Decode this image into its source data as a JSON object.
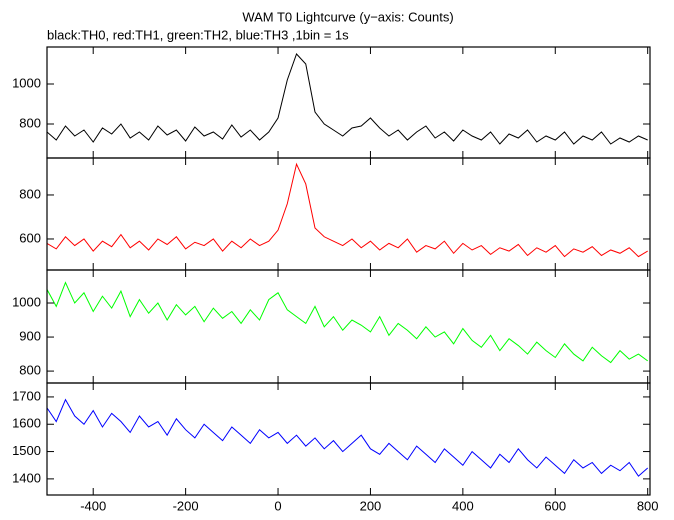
{
  "chart_data": {
    "type": "line",
    "title": "WAM T0 Lightcurve (y−axis: Counts)",
    "subtitle": "black:TH0, red:TH1, green:TH2, blue:TH3 ,1bin = 1s",
    "x": [
      -500,
      -480,
      -460,
      -440,
      -420,
      -400,
      -380,
      -360,
      -340,
      -320,
      -300,
      -280,
      -260,
      -240,
      -220,
      -200,
      -180,
      -160,
      -140,
      -120,
      -100,
      -80,
      -60,
      -40,
      -20,
      0,
      20,
      40,
      60,
      80,
      100,
      120,
      140,
      160,
      180,
      200,
      220,
      240,
      260,
      280,
      300,
      320,
      340,
      360,
      380,
      400,
      420,
      440,
      460,
      480,
      500,
      520,
      540,
      560,
      580,
      600,
      620,
      640,
      660,
      680,
      700,
      720,
      740,
      760,
      780,
      800
    ],
    "xlim": [
      -500,
      805
    ],
    "xticks": [
      -400,
      -200,
      0,
      200,
      400,
      600,
      800
    ],
    "panels": [
      {
        "ylim": [
          630,
          1185
        ],
        "yticks": [
          800,
          1000
        ],
        "color": "#000000",
        "values": [
          760,
          720,
          790,
          740,
          770,
          710,
          780,
          750,
          800,
          730,
          760,
          720,
          790,
          745,
          770,
          715,
          785,
          740,
          760,
          725,
          795,
          735,
          770,
          720,
          760,
          830,
          1020,
          1150,
          1100,
          860,
          800,
          770,
          740,
          780,
          790,
          830,
          780,
          740,
          770,
          720,
          760,
          790,
          730,
          760,
          715,
          770,
          740,
          720,
          760,
          700,
          750,
          730,
          770,
          710,
          740,
          720,
          760,
          700,
          740,
          720,
          760,
          700,
          730,
          710,
          740,
          720
        ]
      },
      {
        "ylim": [
          459,
          968
        ],
        "yticks": [
          600,
          800
        ],
        "color": "#ff0000",
        "values": [
          580,
          555,
          610,
          570,
          600,
          545,
          590,
          565,
          620,
          560,
          590,
          550,
          600,
          575,
          610,
          555,
          585,
          570,
          600,
          545,
          590,
          560,
          600,
          570,
          590,
          640,
          760,
          940,
          850,
          650,
          610,
          590,
          570,
          600,
          560,
          590,
          550,
          580,
          560,
          600,
          540,
          570,
          555,
          590,
          535,
          580,
          550,
          570,
          530,
          560,
          545,
          575,
          525,
          560,
          540,
          570,
          520,
          555,
          540,
          565,
          525,
          550,
          535,
          560,
          520,
          545
        ]
      },
      {
        "ylim": [
          765,
          1097
        ],
        "yticks": [
          800,
          900,
          1000
        ],
        "color": "#00ff00",
        "values": [
          1040,
          990,
          1060,
          1000,
          1030,
          975,
          1020,
          985,
          1035,
          960,
          1010,
          970,
          1000,
          950,
          995,
          965,
          990,
          945,
          985,
          955,
          975,
          940,
          980,
          950,
          1010,
          1030,
          980,
          960,
          940,
          990,
          930,
          960,
          920,
          950,
          935,
          915,
          960,
          905,
          940,
          920,
          895,
          930,
          900,
          915,
          880,
          925,
          890,
          870,
          905,
          860,
          895,
          875,
          850,
          885,
          860,
          840,
          880,
          850,
          830,
          870,
          845,
          825,
          860,
          835,
          850,
          830
        ]
      },
      {
        "ylim": [
          1341,
          1751
        ],
        "yticks": [
          1400,
          1500,
          1600,
          1700
        ],
        "color": "#0000ff",
        "values": [
          1660,
          1610,
          1690,
          1630,
          1600,
          1650,
          1590,
          1640,
          1610,
          1570,
          1630,
          1590,
          1610,
          1560,
          1620,
          1580,
          1550,
          1600,
          1570,
          1540,
          1590,
          1560,
          1530,
          1580,
          1550,
          1570,
          1530,
          1560,
          1520,
          1550,
          1510,
          1540,
          1500,
          1530,
          1560,
          1510,
          1490,
          1530,
          1500,
          1470,
          1520,
          1490,
          1460,
          1510,
          1480,
          1450,
          1500,
          1470,
          1440,
          1490,
          1460,
          1510,
          1470,
          1440,
          1480,
          1450,
          1420,
          1470,
          1440,
          1460,
          1420,
          1450,
          1430,
          1460,
          1410,
          1440
        ]
      }
    ]
  }
}
